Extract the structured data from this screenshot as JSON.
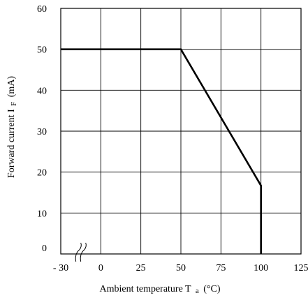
{
  "chart_data": {
    "type": "line",
    "title": "",
    "xlabel": "Ambient temperature T",
    "xlabel_sub": "a",
    "xlabel_unit": "(°C)",
    "ylabel": "Forward current I",
    "ylabel_sub": "F",
    "ylabel_unit": "(mA)",
    "x_tick_labels": [
      "- 30",
      "0",
      "25",
      "50",
      "75",
      "100",
      "125"
    ],
    "y_tick_labels": [
      "0",
      "10",
      "20",
      "30",
      "40",
      "50",
      "60"
    ],
    "x_ticks": [
      -30,
      0,
      25,
      50,
      75,
      100,
      125
    ],
    "y_ticks": [
      0,
      10,
      20,
      30,
      40,
      50,
      60
    ],
    "xlim": [
      -30,
      125
    ],
    "ylim": [
      0,
      60
    ],
    "x_axis_break": true,
    "grid": true,
    "legend": "none",
    "series": [
      {
        "x": [
          -30,
          50,
          100,
          100
        ],
        "y": [
          50,
          50,
          16.7,
          0
        ],
        "color": "#000000"
      }
    ]
  }
}
